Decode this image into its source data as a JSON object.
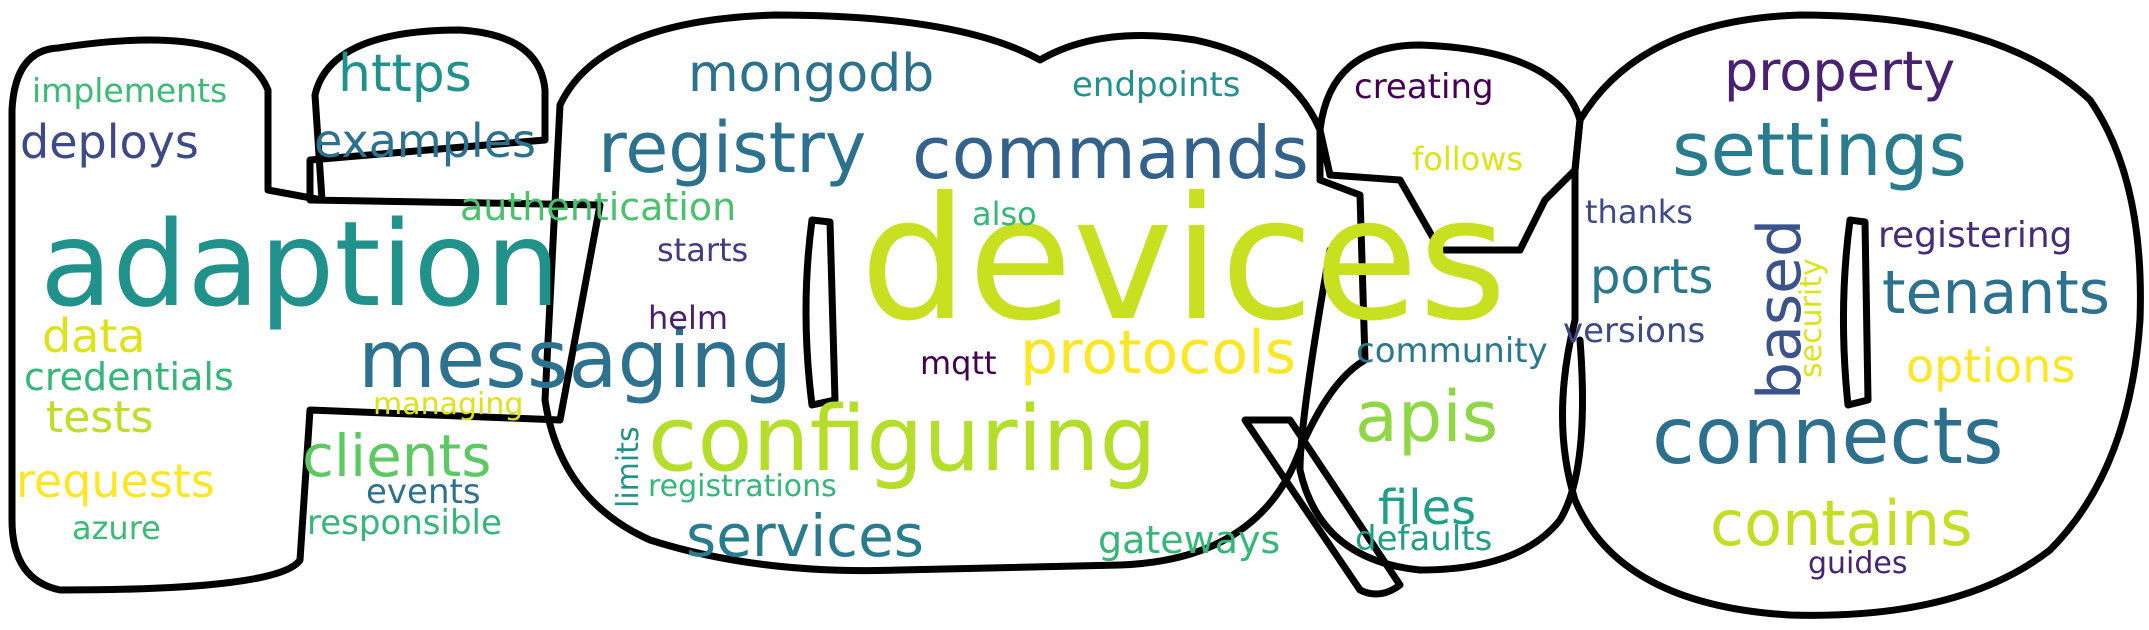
{
  "colors": {
    "outline": "#000000",
    "background": "#ffffff"
  },
  "words": [
    {
      "key": "devices",
      "text": "devices",
      "color": "#c8e020",
      "vertical": false
    },
    {
      "key": "adaption",
      "text": "adaption",
      "color": "#21918c",
      "vertical": false
    },
    {
      "key": "configuring",
      "text": "configuring",
      "color": "#b5de2b",
      "vertical": false
    },
    {
      "key": "messaging",
      "text": "messaging",
      "color": "#2c728e",
      "vertical": false
    },
    {
      "key": "registry",
      "text": "registry",
      "color": "#2c728e",
      "vertical": false
    },
    {
      "key": "commands",
      "text": "commands",
      "color": "#33638d",
      "vertical": false
    },
    {
      "key": "connects",
      "text": "connects",
      "color": "#2d708e",
      "vertical": false
    },
    {
      "key": "settings",
      "text": "settings",
      "color": "#287c8e",
      "vertical": false
    },
    {
      "key": "apis",
      "text": "apis",
      "color": "#8fd744",
      "vertical": false
    },
    {
      "key": "protocols",
      "text": "protocols",
      "color": "#fde725",
      "vertical": false
    },
    {
      "key": "contains",
      "text": "contains",
      "color": "#c2df23",
      "vertical": false
    },
    {
      "key": "services",
      "text": "services",
      "color": "#287c8e",
      "vertical": false
    },
    {
      "key": "tenants",
      "text": "tenants",
      "color": "#2c728e",
      "vertical": false
    },
    {
      "key": "property",
      "text": "property",
      "color": "#482173",
      "vertical": false
    },
    {
      "key": "clients",
      "text": "clients",
      "color": "#5ec962",
      "vertical": false
    },
    {
      "key": "based",
      "text": "based",
      "color": "#3b528b",
      "vertical": true
    },
    {
      "key": "mongodb",
      "text": "mongodb",
      "color": "#2c728e",
      "vertical": false
    },
    {
      "key": "https",
      "text": "https",
      "color": "#21918c",
      "vertical": false
    },
    {
      "key": "examples",
      "text": "examples",
      "color": "#2c728e",
      "vertical": false
    },
    {
      "key": "ports",
      "text": "ports",
      "color": "#2a788e",
      "vertical": false
    },
    {
      "key": "options",
      "text": "options",
      "color": "#fde725",
      "vertical": false
    },
    {
      "key": "files",
      "text": "files",
      "color": "#1f9e89",
      "vertical": false
    },
    {
      "key": "deploys",
      "text": "deploys",
      "color": "#3e4989",
      "vertical": false
    },
    {
      "key": "data",
      "text": "data",
      "color": "#dde318",
      "vertical": false
    },
    {
      "key": "requests",
      "text": "requests",
      "color": "#fde725",
      "vertical": false
    },
    {
      "key": "tests",
      "text": "tests",
      "color": "#bddf26",
      "vertical": false
    },
    {
      "key": "authentication",
      "text": "authentication",
      "color": "#4ac16d",
      "vertical": false
    },
    {
      "key": "credentials",
      "text": "credentials",
      "color": "#35b779",
      "vertical": false
    },
    {
      "key": "gateways",
      "text": "gateways",
      "color": "#35b779",
      "vertical": false
    },
    {
      "key": "registering",
      "text": "registering",
      "color": "#472c7a",
      "vertical": false
    },
    {
      "key": "versions",
      "text": "versions",
      "color": "#3e4989",
      "vertical": false
    },
    {
      "key": "community",
      "text": "community",
      "color": "#2a788e",
      "vertical": false
    },
    {
      "key": "endpoints",
      "text": "endpoints",
      "color": "#21918c",
      "vertical": false
    },
    {
      "key": "responsible",
      "text": "responsible",
      "color": "#35b779",
      "vertical": false
    },
    {
      "key": "defaults",
      "text": "defaults",
      "color": "#1f9e89",
      "vertical": false
    },
    {
      "key": "implements",
      "text": "implements",
      "color": "#3bbb75",
      "vertical": false
    },
    {
      "key": "events",
      "text": "events",
      "color": "#2c728e",
      "vertical": false
    },
    {
      "key": "creating",
      "text": "creating",
      "color": "#440154",
      "vertical": false
    },
    {
      "key": "registrations",
      "text": "registrations",
      "color": "#35b779",
      "vertical": false
    },
    {
      "key": "follows",
      "text": "follows",
      "color": "#dde318",
      "vertical": false
    },
    {
      "key": "azure",
      "text": "azure",
      "color": "#3bbb75",
      "vertical": false
    },
    {
      "key": "managing",
      "text": "managing",
      "color": "#dde318",
      "vertical": false
    },
    {
      "key": "thanks",
      "text": "thanks",
      "color": "#3e4989",
      "vertical": false
    },
    {
      "key": "starts",
      "text": "starts",
      "color": "#443983",
      "vertical": false
    },
    {
      "key": "helm",
      "text": "helm",
      "color": "#481f70",
      "vertical": false
    },
    {
      "key": "also",
      "text": "also",
      "color": "#35b779",
      "vertical": false
    },
    {
      "key": "mqtt",
      "text": "mqtt",
      "color": "#440154",
      "vertical": false
    },
    {
      "key": "guides",
      "text": "guides",
      "color": "#482475",
      "vertical": false
    },
    {
      "key": "limits",
      "text": "limits",
      "color": "#21918c",
      "vertical": true
    },
    {
      "key": "security",
      "text": "security",
      "color": "#dde318",
      "vertical": true
    }
  ]
}
